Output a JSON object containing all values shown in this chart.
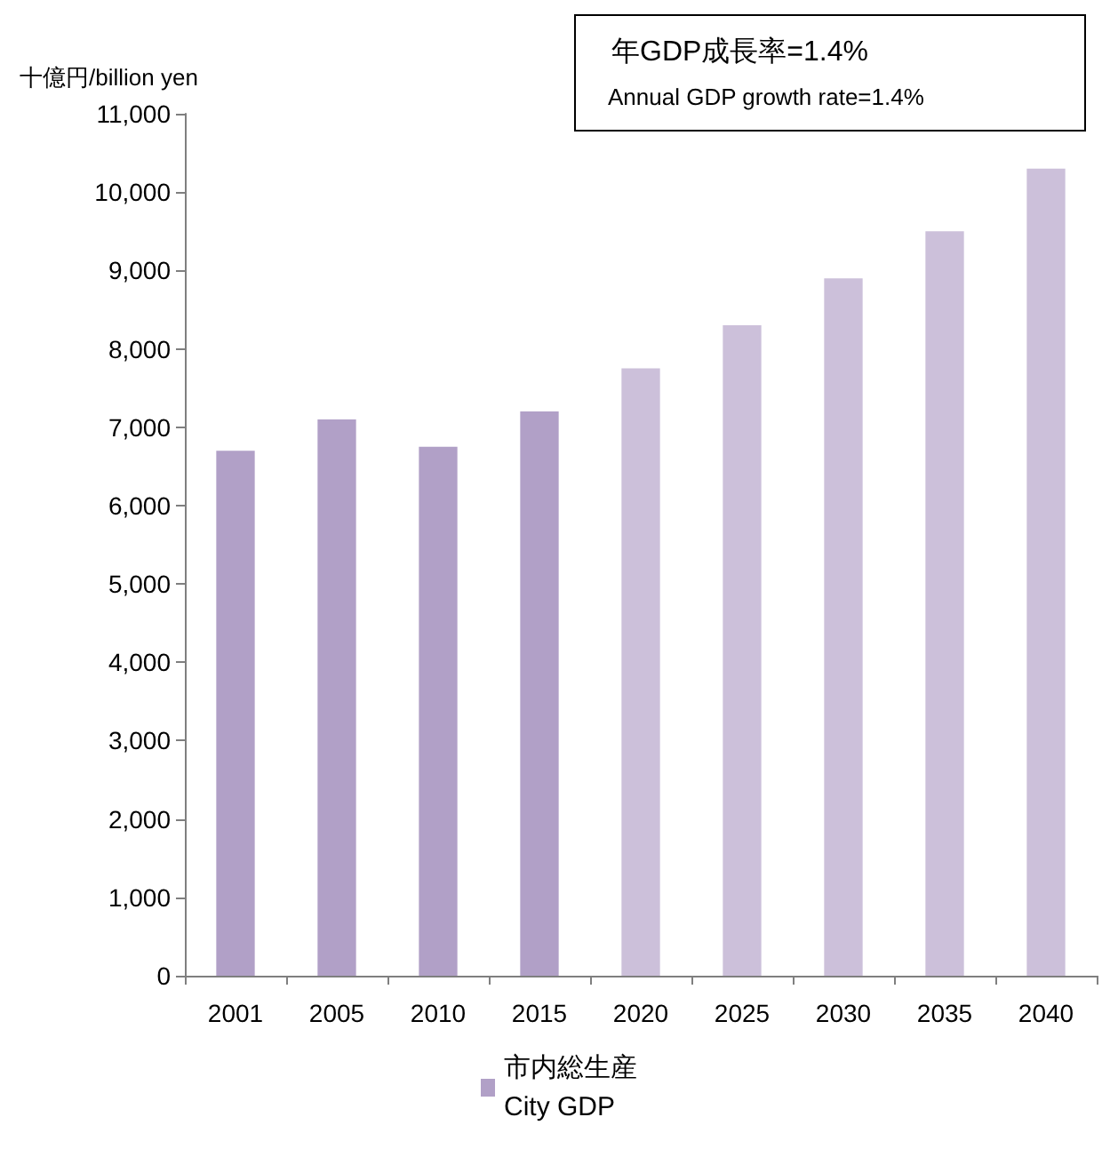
{
  "chart_data": {
    "type": "bar",
    "ylabel": "十億円/billion yen",
    "categories": [
      "2001",
      "2005",
      "2010",
      "2015",
      "2020",
      "2025",
      "2030",
      "2035",
      "2040"
    ],
    "series": [
      {
        "name": "市内総生産\nCity GDP",
        "color": "#b1a0c7",
        "values": [
          6700,
          7100,
          6750,
          7200,
          7750,
          8300,
          8900,
          9500,
          10300
        ],
        "colors": [
          "#b1a0c7",
          "#b1a0c7",
          "#b1a0c7",
          "#b1a0c7",
          "#ccc0da",
          "#ccc0da",
          "#ccc0da",
          "#ccc0da",
          "#ccc0da"
        ]
      }
    ],
    "ylim": [
      0,
      11000
    ],
    "yticks": [
      0,
      {
        "value": 1000,
        "label": "1,000"
      },
      {
        "value": 2000,
        "label": "2,000"
      },
      {
        "value": 3000,
        "label": "3,000"
      },
      {
        "value": 4000,
        "label": "4,000"
      },
      {
        "value": 5000,
        "label": "5,000"
      },
      {
        "value": 6000,
        "label": "6,000"
      },
      {
        "value": 7000,
        "label": "7,000"
      },
      {
        "value": 8000,
        "label": "8,000"
      },
      {
        "value": 9000,
        "label": "9,000"
      },
      {
        "value": 10000,
        "label": "10,000"
      },
      {
        "value": 11000,
        "label": "11,000"
      }
    ],
    "grid": false,
    "legend": "bottom",
    "annotations": [
      "年GDP成長率=1.4%",
      "Annual GDP growth rate=1.4%"
    ]
  }
}
